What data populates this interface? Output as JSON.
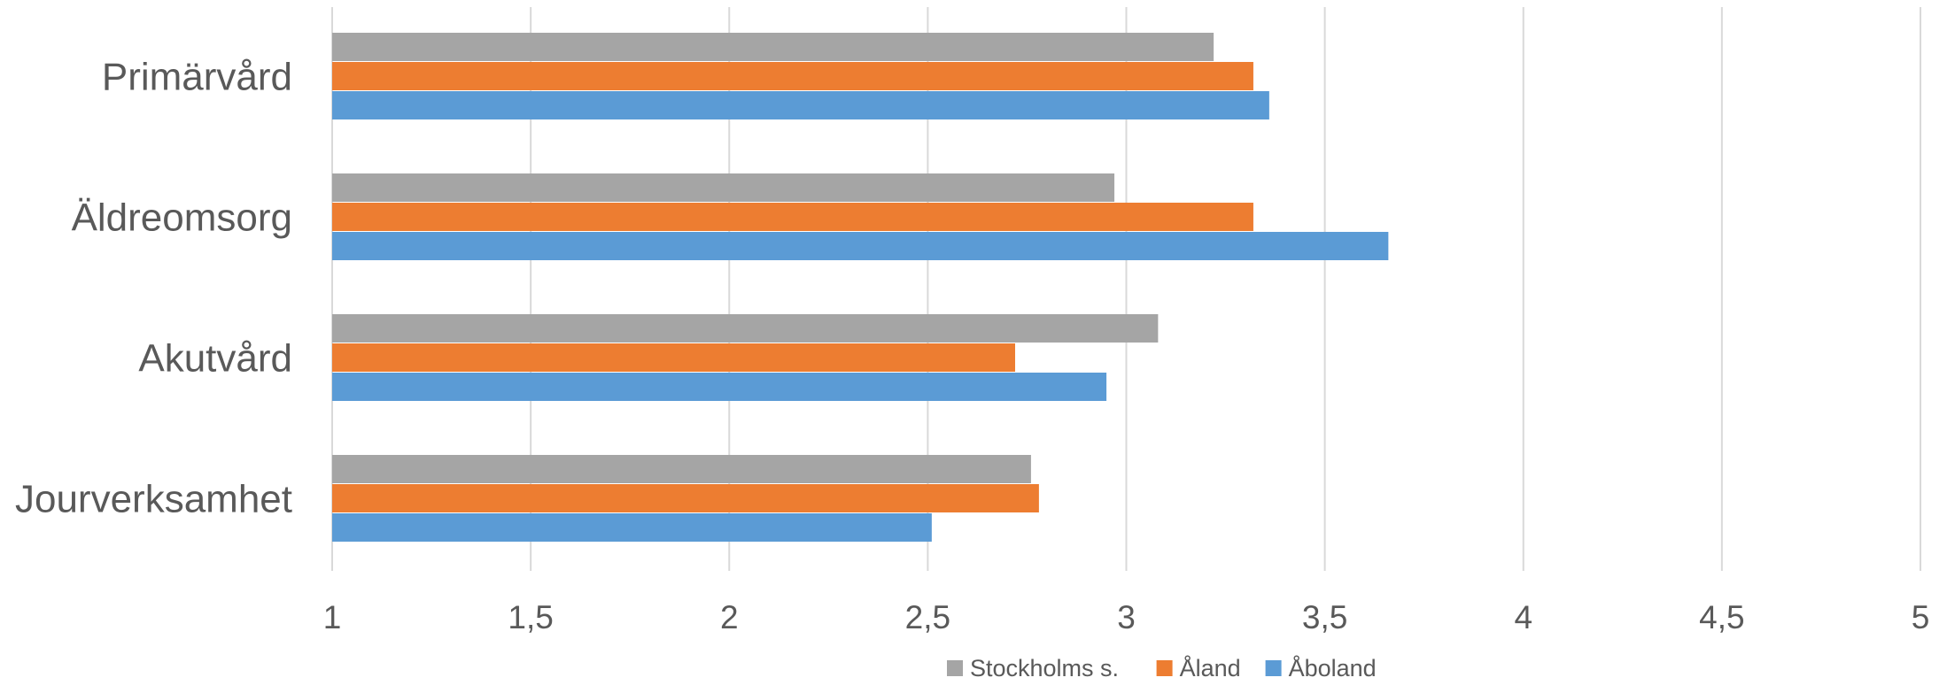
{
  "chart_data": {
    "type": "bar",
    "orientation": "horizontal",
    "categories": [
      "Primärvård",
      "Äldreomsorg",
      "Akutvård",
      "Jourverksamhet"
    ],
    "series": [
      {
        "name": "Stockholms s.",
        "color": "#a5a5a5",
        "values": [
          3.22,
          2.97,
          3.08,
          2.76
        ]
      },
      {
        "name": "Åland",
        "color": "#ed7d31",
        "values": [
          3.32,
          3.32,
          2.72,
          2.78
        ]
      },
      {
        "name": "Åboland",
        "color": "#5b9bd5",
        "values": [
          3.36,
          3.66,
          2.95,
          2.51
        ]
      }
    ],
    "xlim": [
      1,
      5
    ],
    "xticks": [
      1,
      1.5,
      2,
      2.5,
      3,
      3.5,
      4,
      4.5,
      5
    ],
    "xtick_labels": [
      "1",
      "1,5",
      "2",
      "2,5",
      "3",
      "3,5",
      "4",
      "4,5",
      "5"
    ],
    "grid": "vertical",
    "legend_position": "bottom",
    "title": "",
    "xlabel": "",
    "ylabel": ""
  }
}
